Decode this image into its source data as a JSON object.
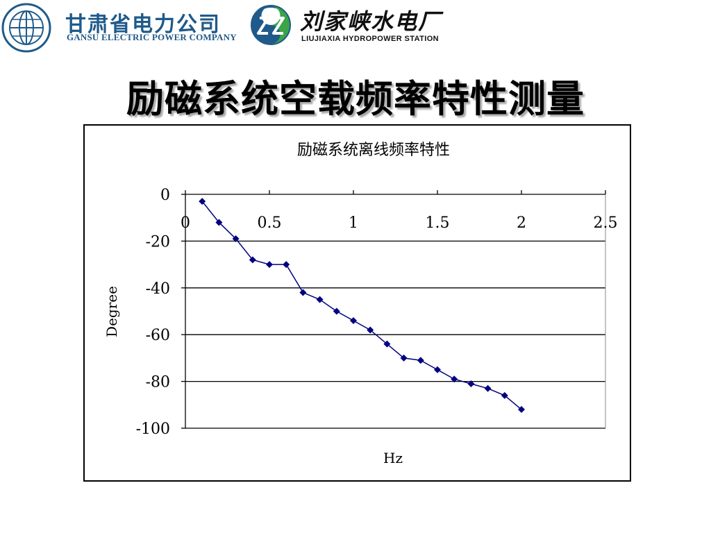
{
  "header": {
    "company_cn": "甘肃省电力公司",
    "company_en": "GANSU ELECTRIC POWER COMPANY",
    "station_cn": "刘家峡水电厂",
    "station_en": "LIUJIAXIA HYDROPOWER STATION",
    "brand_blue": "#1f5a8a",
    "brand_green": "#3aa447",
    "logo_left_icon": "globe-icon",
    "logo_right_icon": "yin-yang-icon"
  },
  "page_title": "励磁系统空载频率特性测量",
  "chart_data": {
    "type": "line",
    "title": "励磁系统离线频率特性",
    "xlabel": "Hz",
    "ylabel": "Degree",
    "xlim": [
      0,
      2.5
    ],
    "ylim": [
      -100,
      0
    ],
    "x_ticks": [
      0,
      0.5,
      1,
      1.5,
      2,
      2.5
    ],
    "x_tick_labels": [
      "0",
      "0.5",
      "1",
      "1.5",
      "2",
      "2.5"
    ],
    "y_ticks": [
      0,
      -20,
      -40,
      -60,
      -80,
      -100
    ],
    "y_tick_labels": [
      "0",
      "-20",
      "-40",
      "-60",
      "-80",
      "-100"
    ],
    "grid": true,
    "legend": "none",
    "line_color": "#000080",
    "series": [
      {
        "x": [
          0.1,
          0.2,
          0.3,
          0.4,
          0.5,
          0.6,
          0.7,
          0.8,
          0.9,
          1.0,
          1.1,
          1.2,
          1.3,
          1.4,
          1.5,
          1.6,
          1.7,
          1.8,
          1.9,
          2.0
        ],
        "values": [
          -3,
          -12,
          -19,
          -28,
          -30,
          -30,
          -42,
          -45,
          -50,
          -54,
          -58,
          -64,
          -70,
          -71,
          -75,
          -79,
          -81,
          -83,
          -86,
          -92
        ]
      }
    ]
  }
}
